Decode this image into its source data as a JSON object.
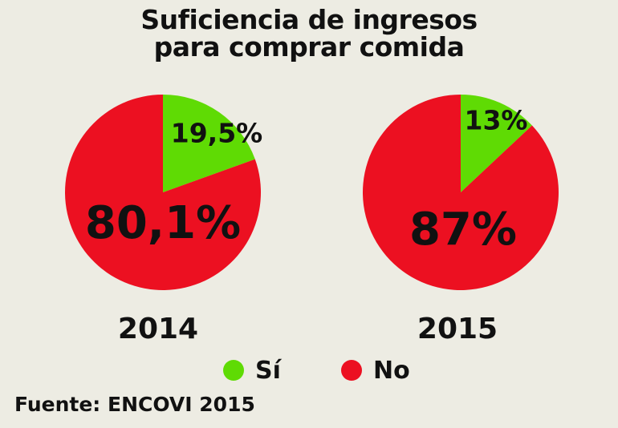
{
  "title": {
    "line1": "Suficiencia de ingresos",
    "line2": "para comprar comida"
  },
  "colors": {
    "background": "#edece3",
    "si": "#5fdb04",
    "no": "#ec1021",
    "text": "#111111"
  },
  "chart_data": [
    {
      "type": "pie",
      "year": "2014",
      "slices": [
        {
          "name": "Sí",
          "value": 19.5,
          "label": "19,5%"
        },
        {
          "name": "No",
          "value": 80.1,
          "label": "80,1%"
        }
      ]
    },
    {
      "type": "pie",
      "year": "2015",
      "slices": [
        {
          "name": "Sí",
          "value": 13,
          "label": "13%"
        },
        {
          "name": "No",
          "value": 87,
          "label": "87%"
        }
      ]
    }
  ],
  "legend": [
    {
      "name": "Sí"
    },
    {
      "name": "No"
    }
  ],
  "source": "Fuente: ENCOVI 2015"
}
